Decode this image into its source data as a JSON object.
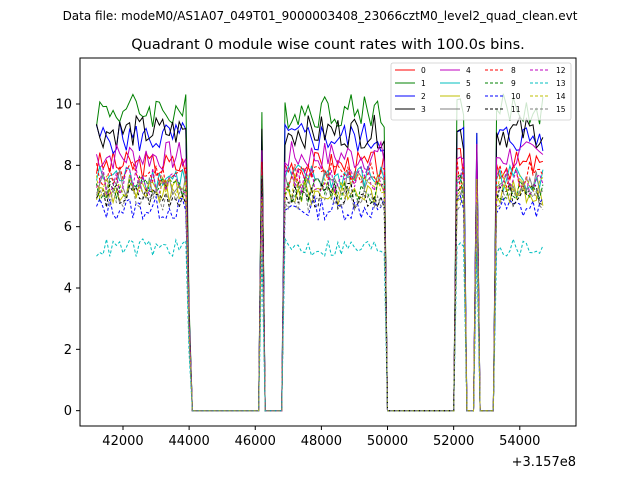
{
  "figure": {
    "suptitle": "Data file: modeM0/AS1A07_049T01_9000003408_23066cztM0_level2_quad_clean.evt",
    "title": "Quadrant 0 module wise count rates with 100.0s bins.",
    "x_offset_text": "+3.157e8"
  },
  "chart_data": {
    "type": "line",
    "title": "Quadrant 0 module wise count rates with 100.0s bins.",
    "xlabel": "",
    "ylabel": "",
    "x_offset": 315700000,
    "xlim": [
      40700,
      55700
    ],
    "ylim": [
      -0.5,
      11.5
    ],
    "xticks": [
      42000,
      44000,
      46000,
      48000,
      50000,
      52000,
      54000
    ],
    "xtick_labels": [
      "42000",
      "44000",
      "46000",
      "48000",
      "50000",
      "52000",
      "54000"
    ],
    "yticks": [
      0,
      2,
      4,
      6,
      8,
      10
    ],
    "ytick_labels": [
      "0",
      "2",
      "4",
      "6",
      "8",
      "10"
    ],
    "grid": false,
    "legend_position": "top-right",
    "legend_columns": 4,
    "segments": [
      {
        "start": 41200,
        "end": 44000
      },
      {
        "start": 46200,
        "end": 46250
      },
      {
        "start": 46900,
        "end": 49950
      },
      {
        "start": 52100,
        "end": 52350
      },
      {
        "start": 52650,
        "end": 52700
      },
      {
        "start": 53250,
        "end": 54750
      }
    ],
    "series": [
      {
        "name": "0",
        "color": "#ff0000",
        "dash": "solid",
        "level": 8.0
      },
      {
        "name": "1",
        "color": "#008000",
        "dash": "solid",
        "level": 9.8
      },
      {
        "name": "2",
        "color": "#0000ff",
        "dash": "solid",
        "level": 8.9
      },
      {
        "name": "3",
        "color": "#000000",
        "dash": "solid",
        "level": 9.1
      },
      {
        "name": "4",
        "color": "#bf00bf",
        "dash": "solid",
        "level": 8.3
      },
      {
        "name": "5",
        "color": "#00bfbf",
        "dash": "solid",
        "level": 7.6
      },
      {
        "name": "6",
        "color": "#bfbf00",
        "dash": "solid",
        "level": 7.1
      },
      {
        "name": "7",
        "color": "#808080",
        "dash": "solid",
        "level": 7.4
      },
      {
        "name": "8",
        "color": "#ff0000",
        "dash": "dashed",
        "level": 7.7
      },
      {
        "name": "9",
        "color": "#008000",
        "dash": "dashed",
        "level": 7.2
      },
      {
        "name": "10",
        "color": "#0000ff",
        "dash": "dashed",
        "level": 6.6
      },
      {
        "name": "11",
        "color": "#000000",
        "dash": "dashed",
        "level": 7.0
      },
      {
        "name": "12",
        "color": "#bf00bf",
        "dash": "dashed",
        "level": 7.5
      },
      {
        "name": "13",
        "color": "#00bfbf",
        "dash": "dashed",
        "level": 5.3
      },
      {
        "name": "14",
        "color": "#bfbf00",
        "dash": "dashed",
        "level": 7.3
      },
      {
        "name": "15",
        "color": "#808080",
        "dash": "dashed",
        "level": 6.9
      }
    ]
  }
}
